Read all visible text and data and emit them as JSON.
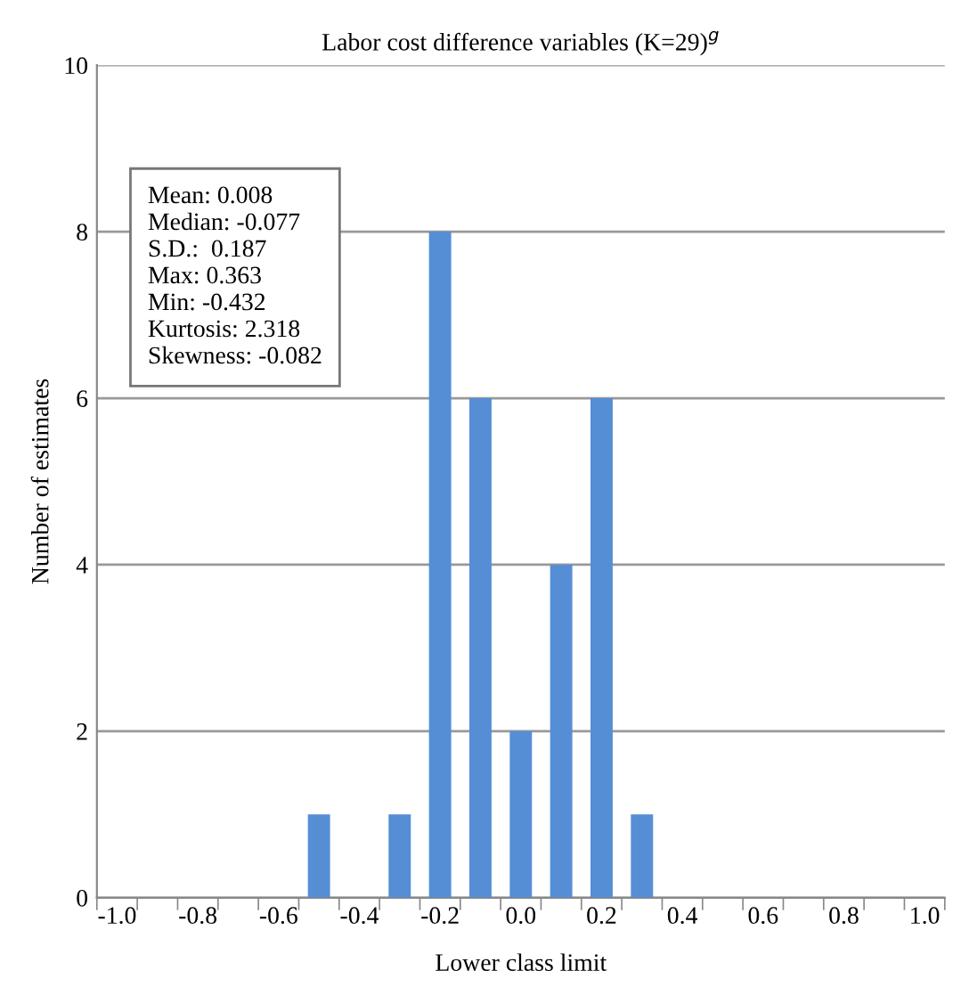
{
  "chart_data": {
    "type": "bar",
    "title": "Labor cost difference variables (K=29)$^{g}$",
    "xlabel": "Lower class limit",
    "ylabel": "Number of estimates",
    "categories": [
      "-1.0",
      null,
      "-0.8",
      null,
      "-0.6",
      null,
      "-0.4",
      null,
      "-0.2",
      null,
      "0.0",
      null,
      "0.2",
      null,
      "0.4",
      null,
      "0.6",
      null,
      "0.8",
      null,
      "1.0"
    ],
    "values": [
      0,
      0,
      0,
      0,
      0,
      1,
      0,
      1,
      8,
      6,
      2,
      4,
      6,
      1,
      0,
      0,
      0,
      0,
      0,
      0,
      0
    ],
    "color": "#558ed5",
    "ylim": [
      0,
      10
    ],
    "yticks": [
      0,
      2,
      4,
      6,
      8,
      10
    ],
    "grid": "y",
    "legend": false,
    "annotations": [
      "Mean: 0.008\nMedian: -0.077\nS.D.:  0.187\nMax: 0.363\nMin: -0.432\nKurtosis: 2.318\nSkewness: -0.082"
    ]
  }
}
